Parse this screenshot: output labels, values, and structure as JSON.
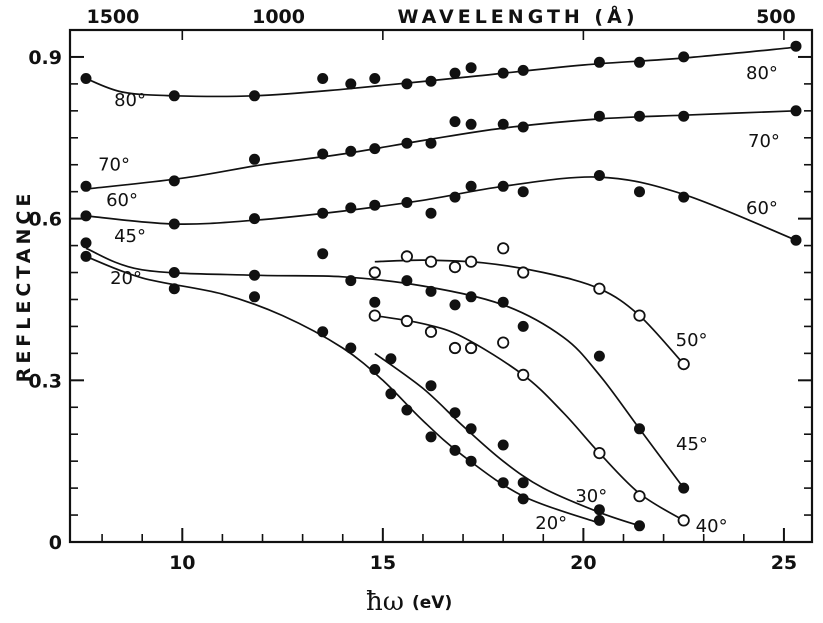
{
  "chart_data": {
    "type": "scatter",
    "title": "",
    "xlabel_symbol": "ħω",
    "xlabel_unit": "(eV)",
    "ylabel": "REFLECTANCE",
    "top_axis_label": "WAVELENGTH (Å)",
    "xlim": [
      7.2,
      25.7
    ],
    "ylim": [
      0,
      0.95
    ],
    "x_ticks": [
      10,
      15,
      20,
      25
    ],
    "x_tick_labels": [
      "10",
      "15",
      "20",
      "25"
    ],
    "y_ticks": [
      0,
      0.3,
      0.6,
      0.9
    ],
    "y_tick_labels": [
      "0",
      "0.3",
      "0.6",
      "0.9"
    ],
    "top_ticks": [
      {
        "ev": 8.27,
        "label": "1500"
      },
      {
        "ev": 12.4,
        "label": "1000"
      },
      {
        "ev": 24.8,
        "label": "500"
      }
    ],
    "grid": false,
    "series": [
      {
        "name": "80°",
        "marker": "filled",
        "points": [
          [
            7.6,
            0.86
          ],
          [
            9.8,
            0.828
          ],
          [
            11.8,
            0.828
          ],
          [
            13.5,
            0.86
          ],
          [
            14.2,
            0.85
          ],
          [
            14.8,
            0.86
          ],
          [
            15.6,
            0.85
          ],
          [
            16.2,
            0.855
          ],
          [
            16.8,
            0.87
          ],
          [
            17.2,
            0.88
          ],
          [
            18,
            0.87
          ],
          [
            18.5,
            0.875
          ],
          [
            20.4,
            0.89
          ],
          [
            21.4,
            0.89
          ],
          [
            22.5,
            0.9
          ],
          [
            25.3,
            0.92
          ]
        ],
        "curve": [
          [
            7.6,
            0.86
          ],
          [
            8.5,
            0.835
          ],
          [
            9.8,
            0.828
          ],
          [
            11.8,
            0.828
          ],
          [
            14,
            0.84
          ],
          [
            17,
            0.862
          ],
          [
            20,
            0.885
          ],
          [
            22.5,
            0.898
          ],
          [
            25.3,
            0.918
          ]
        ],
        "label_at": [
          8.3,
          0.82
        ]
      },
      {
        "name": "70°",
        "marker": "filled",
        "points": [
          [
            7.6,
            0.66
          ],
          [
            9.8,
            0.67
          ],
          [
            11.8,
            0.71
          ],
          [
            13.5,
            0.72
          ],
          [
            14.2,
            0.725
          ],
          [
            14.8,
            0.73
          ],
          [
            15.6,
            0.74
          ],
          [
            16.2,
            0.74
          ],
          [
            16.8,
            0.78
          ],
          [
            17.2,
            0.775
          ],
          [
            18,
            0.775
          ],
          [
            18.5,
            0.77
          ],
          [
            20.4,
            0.79
          ],
          [
            21.4,
            0.79
          ],
          [
            22.5,
            0.79
          ],
          [
            25.3,
            0.8
          ]
        ],
        "curve": [
          [
            7.6,
            0.655
          ],
          [
            10,
            0.675
          ],
          [
            12,
            0.7
          ],
          [
            14,
            0.72
          ],
          [
            16,
            0.745
          ],
          [
            18,
            0.768
          ],
          [
            20.4,
            0.785
          ],
          [
            22.5,
            0.792
          ],
          [
            25.3,
            0.8
          ]
        ],
        "label_at": [
          7.9,
          0.7
        ]
      },
      {
        "name": "60°",
        "marker": "filled",
        "points": [
          [
            7.6,
            0.605
          ],
          [
            9.8,
            0.59
          ],
          [
            11.8,
            0.6
          ],
          [
            13.5,
            0.61
          ],
          [
            14.2,
            0.62
          ],
          [
            14.8,
            0.625
          ],
          [
            15.6,
            0.63
          ],
          [
            16.2,
            0.61
          ],
          [
            16.8,
            0.64
          ],
          [
            17.2,
            0.66
          ],
          [
            18,
            0.66
          ],
          [
            18.5,
            0.65
          ],
          [
            20.4,
            0.68
          ],
          [
            21.4,
            0.65
          ],
          [
            22.5,
            0.64
          ],
          [
            25.3,
            0.56
          ]
        ],
        "curve": [
          [
            7.6,
            0.605
          ],
          [
            9.8,
            0.59
          ],
          [
            11.8,
            0.597
          ],
          [
            14,
            0.614
          ],
          [
            16,
            0.634
          ],
          [
            18,
            0.66
          ],
          [
            20.4,
            0.677
          ],
          [
            22.5,
            0.645
          ],
          [
            25.3,
            0.56
          ]
        ],
        "label_at": [
          8.1,
          0.635
        ]
      },
      {
        "name": "45°",
        "marker": "filled",
        "points": [
          [
            7.6,
            0.555
          ],
          [
            9.8,
            0.5
          ],
          [
            11.8,
            0.495
          ],
          [
            13.5,
            0.535
          ],
          [
            14.2,
            0.485
          ],
          [
            15.6,
            0.485
          ],
          [
            16.2,
            0.465
          ],
          [
            16.8,
            0.44
          ],
          [
            17.2,
            0.455
          ],
          [
            18,
            0.445
          ],
          [
            18.5,
            0.4
          ],
          [
            20.4,
            0.345
          ],
          [
            21.4,
            0.21
          ],
          [
            22.5,
            0.1
          ]
        ],
        "curve": [
          [
            7.6,
            0.545
          ],
          [
            9,
            0.505
          ],
          [
            11.8,
            0.495
          ],
          [
            14,
            0.492
          ],
          [
            16,
            0.475
          ],
          [
            18,
            0.44
          ],
          [
            19.5,
            0.38
          ],
          [
            20.4,
            0.31
          ],
          [
            21.4,
            0.21
          ],
          [
            22.5,
            0.1
          ]
        ],
        "label_at": [
          8.3,
          0.568
        ]
      },
      {
        "name": "20°",
        "marker": "filled",
        "points": [
          [
            7.6,
            0.53
          ],
          [
            9.8,
            0.47
          ],
          [
            11.8,
            0.455
          ],
          [
            13.5,
            0.39
          ],
          [
            14.2,
            0.36
          ],
          [
            14.8,
            0.32
          ],
          [
            15.2,
            0.275
          ],
          [
            15.6,
            0.245
          ],
          [
            16.2,
            0.195
          ],
          [
            16.8,
            0.17
          ],
          [
            17.2,
            0.15
          ],
          [
            18,
            0.11
          ],
          [
            18.5,
            0.08
          ],
          [
            20.4,
            0.04
          ]
        ],
        "curve": [
          [
            7.6,
            0.53
          ],
          [
            9,
            0.49
          ],
          [
            11,
            0.46
          ],
          [
            12.5,
            0.42
          ],
          [
            14,
            0.36
          ],
          [
            15,
            0.3
          ],
          [
            16,
            0.225
          ],
          [
            17,
            0.16
          ],
          [
            18.5,
            0.085
          ],
          [
            20.4,
            0.035
          ]
        ],
        "label_at": [
          8.2,
          0.49
        ]
      },
      {
        "name": "50°",
        "marker": "open",
        "points": [
          [
            14.8,
            0.5
          ],
          [
            15.6,
            0.53
          ],
          [
            16.2,
            0.52
          ],
          [
            16.8,
            0.51
          ],
          [
            17.2,
            0.52
          ],
          [
            18,
            0.545
          ],
          [
            18.5,
            0.5
          ],
          [
            20.4,
            0.47
          ],
          [
            21.4,
            0.42
          ],
          [
            22.5,
            0.33
          ]
        ],
        "curve": [
          [
            14.8,
            0.52
          ],
          [
            16,
            0.523
          ],
          [
            17.5,
            0.518
          ],
          [
            19,
            0.5
          ],
          [
            20.4,
            0.47
          ],
          [
            21.4,
            0.42
          ],
          [
            22.5,
            0.33
          ]
        ],
        "label_at": [
          22.3,
          0.375
        ]
      },
      {
        "name": "40°",
        "marker": "open",
        "points": [
          [
            14.8,
            0.42
          ],
          [
            15.6,
            0.41
          ],
          [
            16.2,
            0.39
          ],
          [
            16.8,
            0.36
          ],
          [
            17.2,
            0.36
          ],
          [
            18,
            0.37
          ],
          [
            18.5,
            0.31
          ],
          [
            20.4,
            0.165
          ],
          [
            21.4,
            0.085
          ],
          [
            22.5,
            0.04
          ]
        ],
        "curve": [
          [
            14.8,
            0.42
          ],
          [
            16,
            0.405
          ],
          [
            17,
            0.38
          ],
          [
            18.5,
            0.31
          ],
          [
            19.5,
            0.24
          ],
          [
            20.4,
            0.165
          ],
          [
            21.4,
            0.09
          ],
          [
            22.5,
            0.04
          ]
        ],
        "label_at": [
          22.8,
          0.03
        ]
      },
      {
        "name": "30°",
        "marker": "filled",
        "points": [
          [
            14.8,
            0.445
          ],
          [
            15.2,
            0.34
          ],
          [
            16.2,
            0.29
          ],
          [
            16.8,
            0.24
          ],
          [
            17.2,
            0.21
          ],
          [
            18,
            0.18
          ],
          [
            18.5,
            0.11
          ],
          [
            20.4,
            0.06
          ],
          [
            21.4,
            0.03
          ]
        ],
        "curve": [
          [
            14.8,
            0.35
          ],
          [
            16,
            0.285
          ],
          [
            17,
            0.215
          ],
          [
            18,
            0.15
          ],
          [
            19,
            0.1
          ],
          [
            20.4,
            0.055
          ],
          [
            21.4,
            0.03
          ]
        ],
        "label_at": [
          19.8,
          0.085
        ]
      }
    ],
    "secondary_labels": [
      {
        "name": "20°",
        "at": [
          18.8,
          0.035
        ]
      }
    ]
  }
}
